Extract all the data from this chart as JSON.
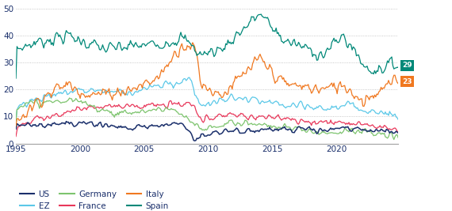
{
  "title": "",
  "ylabel": "",
  "xlabel": "",
  "ylim": [
    0,
    52
  ],
  "yticks": [
    0,
    10,
    20,
    30,
    40,
    50
  ],
  "start_year": 1995,
  "end_year": 2024,
  "label_values": {
    "Spain": 29,
    "Italy": 23
  },
  "colors": {
    "US": "#1a2f6b",
    "EZ": "#5bc8e8",
    "Germany": "#7dc46e",
    "France": "#e8375a",
    "Italy": "#f07820",
    "Spain": "#008878"
  },
  "background_color": "#ffffff",
  "grid_color": "#b0b0b0",
  "legend_items": [
    "US",
    "EZ",
    "Germany",
    "France",
    "Italy",
    "Spain"
  ],
  "legend_order": [
    [
      "US",
      "EZ",
      "Germany"
    ],
    [
      "France",
      "Italy",
      "Spain"
    ]
  ]
}
